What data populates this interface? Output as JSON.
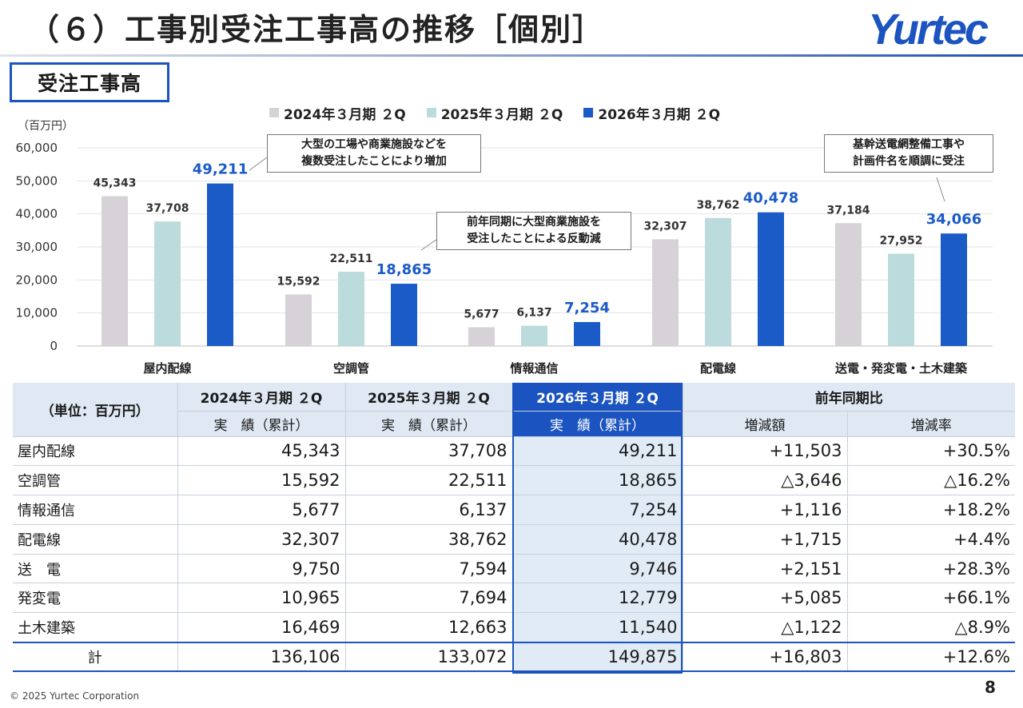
{
  "header": {
    "title": "（６）工事別受注工事高の推移［個別］",
    "logo_text": "Yurtec"
  },
  "section": {
    "label": "受注工事高"
  },
  "legend": [
    {
      "label": "2024年３月期 ２Q",
      "color": "#d6d2d8"
    },
    {
      "label": "2025年３月期 ２Q",
      "color": "#bcdbdd"
    },
    {
      "label": "2026年３月期 ２Q",
      "color": "#1b5bc7"
    }
  ],
  "chart_data": {
    "type": "bar",
    "unit_label": "（百万円）",
    "categories": [
      "屋内配線",
      "空調管",
      "情報通信",
      "配電線",
      "送電・発変電・土木建築"
    ],
    "series": [
      {
        "name": "2024年３月期 ２Q",
        "values": [
          45343,
          15592,
          5677,
          32307,
          37184
        ],
        "labels": [
          "45,343",
          "15,592",
          "5,677",
          "32,307",
          "37,184"
        ],
        "color": "#d6d2d8"
      },
      {
        "name": "2025年３月期 ２Q",
        "values": [
          37708,
          22511,
          6137,
          38762,
          27952
        ],
        "labels": [
          "37,708",
          "22,511",
          "6,137",
          "38,762",
          "27,952"
        ],
        "color": "#bcdbdd"
      },
      {
        "name": "2026年３月期 ２Q",
        "values": [
          49211,
          18865,
          7254,
          40478,
          34066
        ],
        "labels": [
          "49,211",
          "18,865",
          "7,254",
          "40,478",
          "34,066"
        ],
        "color": "#1b5bc7"
      }
    ],
    "ylim": [
      0,
      60000
    ],
    "yticks": [
      0,
      10000,
      20000,
      30000,
      40000,
      50000,
      60000
    ],
    "ytick_labels": [
      "0",
      "10,000",
      "20,000",
      "30,000",
      "40,000",
      "50,000",
      "60,000"
    ],
    "grid": true
  },
  "callouts": [
    {
      "line1": "大型の工場や商業施設などを",
      "line2": "複数受注したことにより増加"
    },
    {
      "line1": "前年同期に大型商業施設を",
      "line2": "受注したことによる反動減"
    },
    {
      "line1": "基幹送電網整備工事や",
      "line2": "計画件名を順調に受注"
    }
  ],
  "table": {
    "unit": "（単位：百万円）",
    "periods": [
      "2024年３月期 ２Q",
      "2025年３月期 ２Q",
      "2026年３月期 ２Q"
    ],
    "sub_header": "実　績（累計）",
    "comparison": "前年同期比",
    "diff_header": "増減額",
    "rate_header": "増減率",
    "rows": [
      {
        "label": "屋内配線",
        "v2024": "45,343",
        "v2025": "37,708",
        "v2026": "49,211",
        "diff": "+11,503",
        "rate": "+30.5%"
      },
      {
        "label": "空調管",
        "v2024": "15,592",
        "v2025": "22,511",
        "v2026": "18,865",
        "diff": "△3,646",
        "rate": "△16.2%"
      },
      {
        "label": "情報通信",
        "v2024": "5,677",
        "v2025": "6,137",
        "v2026": "7,254",
        "diff": "+1,116",
        "rate": "+18.2%"
      },
      {
        "label": "配電線",
        "v2024": "32,307",
        "v2025": "38,762",
        "v2026": "40,478",
        "diff": "+1,715",
        "rate": "+4.4%"
      },
      {
        "label": "送　電",
        "v2024": "9,750",
        "v2025": "7,594",
        "v2026": "9,746",
        "diff": "+2,151",
        "rate": "+28.3%"
      },
      {
        "label": "発変電",
        "v2024": "10,965",
        "v2025": "7,694",
        "v2026": "12,779",
        "diff": "+5,085",
        "rate": "+66.1%"
      },
      {
        "label": "土木建築",
        "v2024": "16,469",
        "v2025": "12,663",
        "v2026": "11,540",
        "diff": "△1,122",
        "rate": "△8.9%"
      }
    ],
    "total": {
      "label": "計",
      "v2024": "136,106",
      "v2025": "133,072",
      "v2026": "149,875",
      "diff": "+16,803",
      "rate": "+12.6%"
    }
  },
  "footer": {
    "copyright": "© 2025 Yurtec Corporation",
    "page": "8"
  }
}
